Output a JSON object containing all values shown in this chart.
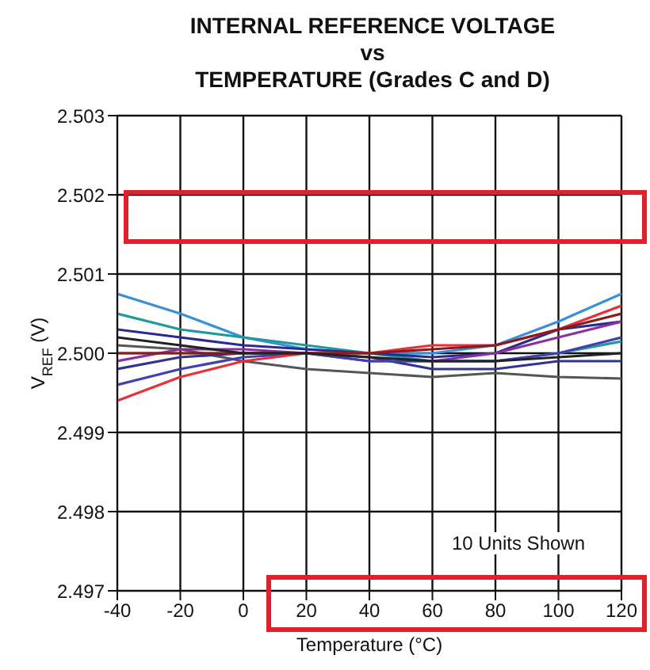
{
  "chart_data": {
    "type": "line",
    "title": "INTERNAL REFERENCE VOLTAGE",
    "subtitle": "vs\nTEMPERATURE (Grades C and D)",
    "xlabel": "Temperature (°C)",
    "ylabel": "V$_{REF}$ (V)",
    "x": [
      -40,
      -20,
      0,
      20,
      40,
      60,
      80,
      100,
      120
    ],
    "xlim": [
      -40,
      120
    ],
    "xticks": [
      -40,
      -20,
      0,
      20,
      40,
      60,
      80,
      100,
      120
    ],
    "ylim": [
      2.497,
      2.503
    ],
    "yticks": [
      2.497,
      2.498,
      2.499,
      {
        "value": 2.5,
        "label": "2.500"
      },
      2.501,
      2.502,
      2.503
    ],
    "grid": true,
    "marker": "none",
    "line_style": "solid",
    "annotations": [
      "10 Units Shown"
    ],
    "series": [
      {
        "color": "#3a8fd6",
        "values": [
          2.50075,
          2.5005,
          2.5002,
          2.50005,
          2.5,
          2.5,
          2.5001,
          2.5004,
          2.50075
        ]
      },
      {
        "color": "#1f9a9a",
        "values": [
          2.5005,
          2.5003,
          2.5002,
          2.5001,
          2.5,
          2.4999,
          2.4999,
          2.5,
          2.50015
        ]
      },
      {
        "color": "#2b2b8f",
        "values": [
          2.5003,
          2.5002,
          2.5001,
          2.50005,
          2.5,
          2.49995,
          2.5,
          2.5003,
          2.5004
        ]
      },
      {
        "color": "#555555",
        "values": [
          2.5001,
          2.50005,
          2.4999,
          2.4998,
          2.49975,
          2.4997,
          2.49975,
          2.4997,
          2.49968
        ]
      },
      {
        "color": "#8a2f9e",
        "values": [
          2.4999,
          2.50005,
          2.50005,
          2.5,
          2.4999,
          2.4999,
          2.5,
          2.5002,
          2.5004
        ]
      },
      {
        "color": "#33338a",
        "values": [
          2.4998,
          2.49995,
          2.5,
          2.5,
          2.49995,
          2.4998,
          2.4998,
          2.4999,
          2.4999
        ]
      },
      {
        "color": "#4040b0",
        "values": [
          2.4996,
          2.4998,
          2.49995,
          2.5,
          2.4999,
          2.4999,
          2.4999,
          2.5,
          2.5002
        ]
      },
      {
        "color": "#e8303a",
        "values": [
          2.4994,
          2.4997,
          2.4999,
          2.5,
          2.5,
          2.5001,
          2.5001,
          2.5003,
          2.5006
        ]
      },
      {
        "color": "#8b1a1a",
        "values": [
          2.5,
          2.5,
          2.5,
          2.5,
          2.5,
          2.50005,
          2.5001,
          2.5003,
          2.5005
        ]
      },
      {
        "color": "#222222",
        "values": [
          2.5002,
          2.5001,
          2.5,
          2.5,
          2.49995,
          2.4999,
          2.4999,
          2.49995,
          2.5
        ]
      }
    ]
  }
}
